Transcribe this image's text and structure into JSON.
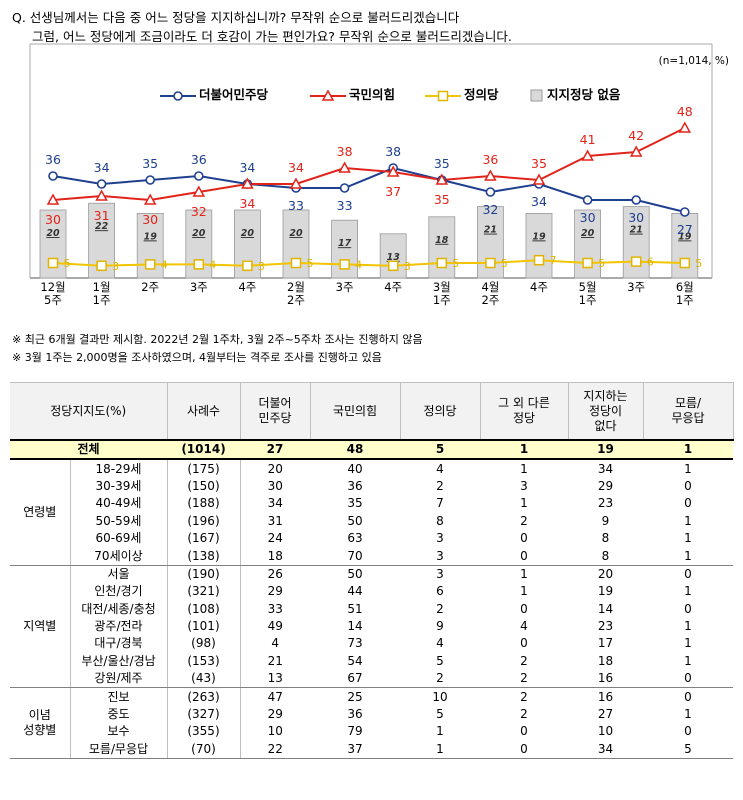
{
  "question": {
    "line1": "Q. 선생님께서는 다음 중 어느 정당을 지지하십니까? 무작위 순으로 불러드리겠습니다",
    "line2": "그럼, 어느 정당에게 조금이라도 더 호감이 가는 편인가요? 무작위 순으로 불러드리겠습니다."
  },
  "sample_note": "(n=1,014,  %)",
  "chart_data": {
    "type": "line",
    "categories": [
      [
        "12월",
        "5주"
      ],
      [
        "1월",
        "1주"
      ],
      [
        "2주"
      ],
      [
        "3주"
      ],
      [
        "4주"
      ],
      [
        "2월",
        "2주"
      ],
      [
        "3주"
      ],
      [
        "4주"
      ],
      [
        "3월",
        "1주"
      ],
      [
        "4월",
        "2주"
      ],
      [
        "4주"
      ],
      [
        "5월",
        "1주"
      ],
      [
        "3주"
      ],
      [
        "6월",
        "1주"
      ]
    ],
    "series": [
      {
        "name": "더불어민주당",
        "type": "line",
        "color": "#1f3f8f",
        "marker": "circle",
        "values": [
          36,
          34,
          35,
          36,
          34,
          33,
          33,
          38,
          35,
          32,
          34,
          30,
          30,
          27
        ]
      },
      {
        "name": "국민의힘",
        "type": "line",
        "color": "#e2231a",
        "marker": "triangle",
        "values": [
          30,
          31,
          30,
          32,
          34,
          34,
          38,
          37,
          35,
          36,
          35,
          41,
          42,
          48
        ]
      },
      {
        "name": "정의당",
        "type": "line",
        "color": "#f2c500",
        "marker": "square",
        "values": [
          5,
          3,
          4,
          4,
          3,
          5,
          4,
          3,
          5,
          5,
          7,
          5,
          6,
          5
        ]
      },
      {
        "name": "지지정당 없음",
        "type": "bar",
        "color": "#d9d9d9",
        "values": [
          20,
          22,
          19,
          20,
          20,
          20,
          17,
          13,
          18,
          21,
          19,
          20,
          21,
          19
        ]
      }
    ],
    "ylim": [
      0,
      60
    ],
    "legend_position": "top"
  },
  "notes": {
    "note1": "※ 최근 6개월 결과만 제시함. 2022년 2월 1주차, 3월 2주~5주차 조사는 진행하지 않음",
    "note2": "※ 3월 1주는 2,000명을 조사하였으며, 4월부터는 격주로 조사를 진행하고 있음"
  },
  "table": {
    "headers": [
      "정당지지도(%)",
      "사례수",
      "더불어\n민주당",
      "국민의힘",
      "정의당",
      "그 외 다른\n정당",
      "지지하는\n정당이\n없다",
      "모름/\n무응답"
    ],
    "total": {
      "label": "전체",
      "n": "(1014)",
      "vals": [
        "27",
        "48",
        "5",
        "1",
        "19",
        "1"
      ]
    },
    "groups": [
      {
        "name": "연령별",
        "rows": [
          {
            "label": "18-29세",
            "n": "(175)",
            "vals": [
              "20",
              "40",
              "4",
              "1",
              "34",
              "1"
            ]
          },
          {
            "label": "30-39세",
            "n": "(150)",
            "vals": [
              "30",
              "36",
              "2",
              "3",
              "29",
              "0"
            ]
          },
          {
            "label": "40-49세",
            "n": "(188)",
            "vals": [
              "34",
              "35",
              "7",
              "1",
              "23",
              "0"
            ]
          },
          {
            "label": "50-59세",
            "n": "(196)",
            "vals": [
              "31",
              "50",
              "8",
              "2",
              "9",
              "1"
            ]
          },
          {
            "label": "60-69세",
            "n": "(167)",
            "vals": [
              "24",
              "63",
              "3",
              "0",
              "8",
              "1"
            ]
          },
          {
            "label": "70세이상",
            "n": "(138)",
            "vals": [
              "18",
              "70",
              "3",
              "0",
              "8",
              "1"
            ]
          }
        ]
      },
      {
        "name": "지역별",
        "rows": [
          {
            "label": "서울",
            "n": "(190)",
            "vals": [
              "26",
              "50",
              "3",
              "1",
              "20",
              "0"
            ]
          },
          {
            "label": "인천/경기",
            "n": "(321)",
            "vals": [
              "29",
              "44",
              "6",
              "1",
              "19",
              "1"
            ]
          },
          {
            "label": "대전/세종/충청",
            "n": "(108)",
            "vals": [
              "33",
              "51",
              "2",
              "0",
              "14",
              "0"
            ]
          },
          {
            "label": "광주/전라",
            "n": "(101)",
            "vals": [
              "49",
              "14",
              "9",
              "4",
              "23",
              "1"
            ]
          },
          {
            "label": "대구/경북",
            "n": "(98)",
            "vals": [
              "4",
              "73",
              "4",
              "0",
              "17",
              "1"
            ]
          },
          {
            "label": "부산/울산/경남",
            "n": "(153)",
            "vals": [
              "21",
              "54",
              "5",
              "2",
              "18",
              "1"
            ]
          },
          {
            "label": "강원/제주",
            "n": "(43)",
            "vals": [
              "13",
              "67",
              "2",
              "2",
              "16",
              "0"
            ]
          }
        ]
      },
      {
        "name": "이념\n성향별",
        "rows": [
          {
            "label": "진보",
            "n": "(263)",
            "vals": [
              "47",
              "25",
              "10",
              "2",
              "16",
              "0"
            ]
          },
          {
            "label": "중도",
            "n": "(327)",
            "vals": [
              "29",
              "36",
              "5",
              "2",
              "27",
              "1"
            ]
          },
          {
            "label": "보수",
            "n": "(355)",
            "vals": [
              "10",
              "79",
              "1",
              "0",
              "10",
              "0"
            ]
          },
          {
            "label": "모름/무응답",
            "n": "(70)",
            "vals": [
              "22",
              "37",
              "1",
              "0",
              "34",
              "5"
            ]
          }
        ]
      }
    ]
  }
}
